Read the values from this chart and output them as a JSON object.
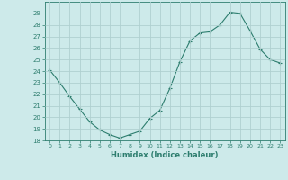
{
  "xlabel": "Humidex (Indice chaleur)",
  "x": [
    0,
    1,
    2,
    3,
    4,
    5,
    6,
    7,
    8,
    9,
    10,
    11,
    12,
    13,
    14,
    15,
    16,
    17,
    18,
    19,
    20,
    21,
    22,
    23
  ],
  "y": [
    24.1,
    23.0,
    21.8,
    20.7,
    19.6,
    18.9,
    18.5,
    18.2,
    18.5,
    18.8,
    19.9,
    20.6,
    22.5,
    24.8,
    26.6,
    27.3,
    27.4,
    28.0,
    29.1,
    29.0,
    27.5,
    25.9,
    25.0,
    24.7
  ],
  "line_color": "#2d7d6e",
  "marker": "+",
  "marker_size": 3.5,
  "bg_color": "#cdeaea",
  "grid_color": "#b0d0d0",
  "ylim": [
    18,
    30
  ],
  "yticks": [
    18,
    19,
    20,
    21,
    22,
    23,
    24,
    25,
    26,
    27,
    28,
    29
  ],
  "xlim": [
    -0.5,
    23.5
  ],
  "xticks": [
    0,
    1,
    2,
    3,
    4,
    5,
    6,
    7,
    8,
    9,
    10,
    11,
    12,
    13,
    14,
    15,
    16,
    17,
    18,
    19,
    20,
    21,
    22,
    23
  ]
}
